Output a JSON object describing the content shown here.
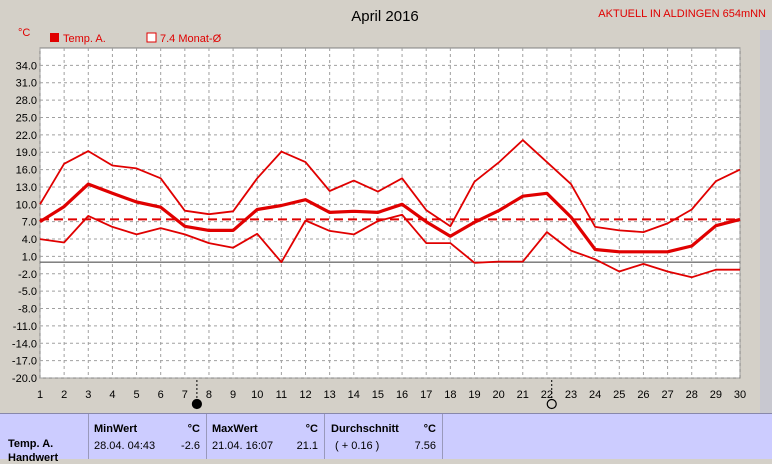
{
  "header": {
    "title": "April 2016",
    "station": "AKTUELL IN ALDINGEN 654mNN",
    "unit": "°C"
  },
  "legend": {
    "items": [
      {
        "label": "Temp. A.",
        "color": "#e00000",
        "filled": true
      },
      {
        "label": "7.4 Monat-Ø",
        "color": "#e00000",
        "filled": false
      }
    ]
  },
  "chart_data": {
    "type": "line",
    "title": "April 2016",
    "ylabel": "°C",
    "x": [
      1,
      2,
      3,
      4,
      5,
      6,
      7,
      8,
      9,
      10,
      11,
      12,
      13,
      14,
      15,
      16,
      17,
      18,
      19,
      20,
      21,
      22,
      23,
      24,
      25,
      26,
      27,
      28,
      29,
      30
    ],
    "xlim": [
      1,
      30
    ],
    "ylim": [
      -20,
      37
    ],
    "yticks": [
      34.0,
      31.0,
      28.0,
      25.0,
      22.0,
      19.0,
      16.0,
      13.0,
      10.0,
      7.0,
      4.0,
      1.0,
      -2.0,
      -5.0,
      -8.0,
      -11.0,
      -14.0,
      -17.0,
      -20.0
    ],
    "grid": true,
    "monthly_mean": 7.4,
    "zero_line": 0,
    "series": [
      {
        "role": "max",
        "color": "#e00000",
        "width": 1.8,
        "values": [
          10,
          17,
          19.2,
          16.7,
          16.2,
          14.5,
          8.9,
          8.3,
          8.8,
          14.5,
          19.1,
          17.3,
          12.3,
          14.1,
          12.2,
          14.5,
          9,
          6.2,
          13.9,
          17.2,
          21.1,
          17.3,
          13.5,
          6.1,
          5.5,
          5.2,
          6.7,
          9.1,
          14,
          16
        ]
      },
      {
        "role": "mean",
        "color": "#e00000",
        "width": 3.2,
        "values": [
          7,
          9.6,
          13.5,
          11.9,
          10.4,
          9.5,
          6.2,
          5.5,
          5.5,
          9.1,
          9.8,
          10.8,
          8.6,
          8.8,
          8.6,
          10,
          7,
          4.5,
          6.9,
          8.9,
          11.4,
          11.9,
          7.8,
          2.2,
          1.8,
          1.8,
          1.8,
          2.8,
          6.3,
          7.4
        ]
      },
      {
        "role": "min",
        "color": "#e00000",
        "width": 1.8,
        "values": [
          4,
          3.4,
          8,
          6.1,
          4.8,
          5.9,
          4.8,
          3.3,
          2.5,
          4.9,
          0,
          7.2,
          5.4,
          4.8,
          7.1,
          8.2,
          3.3,
          3.3,
          -0.1,
          0.1,
          0.1,
          5.2,
          2,
          0.5,
          -1.6,
          -0.3,
          -1.6,
          -2.6,
          -1.3,
          -1.3
        ]
      }
    ],
    "moon_phases": [
      {
        "day": 7.5,
        "phase": "new-moon"
      },
      {
        "day": 22.2,
        "phase": "full-moon"
      }
    ]
  },
  "summary": {
    "row_label": "Temp. A.",
    "row_label2": "Handwert",
    "min": {
      "header": "MinWert",
      "unit": "°C",
      "datetime": "28.04.  04:43",
      "value": "-2.6"
    },
    "max": {
      "header": "MaxWert",
      "unit": "°C",
      "datetime": "21.04.  16:07",
      "value": "21.1"
    },
    "avg": {
      "header": "Durchschnitt",
      "unit": "°C",
      "delta": "( + 0.16 )",
      "value": "7.56"
    }
  }
}
